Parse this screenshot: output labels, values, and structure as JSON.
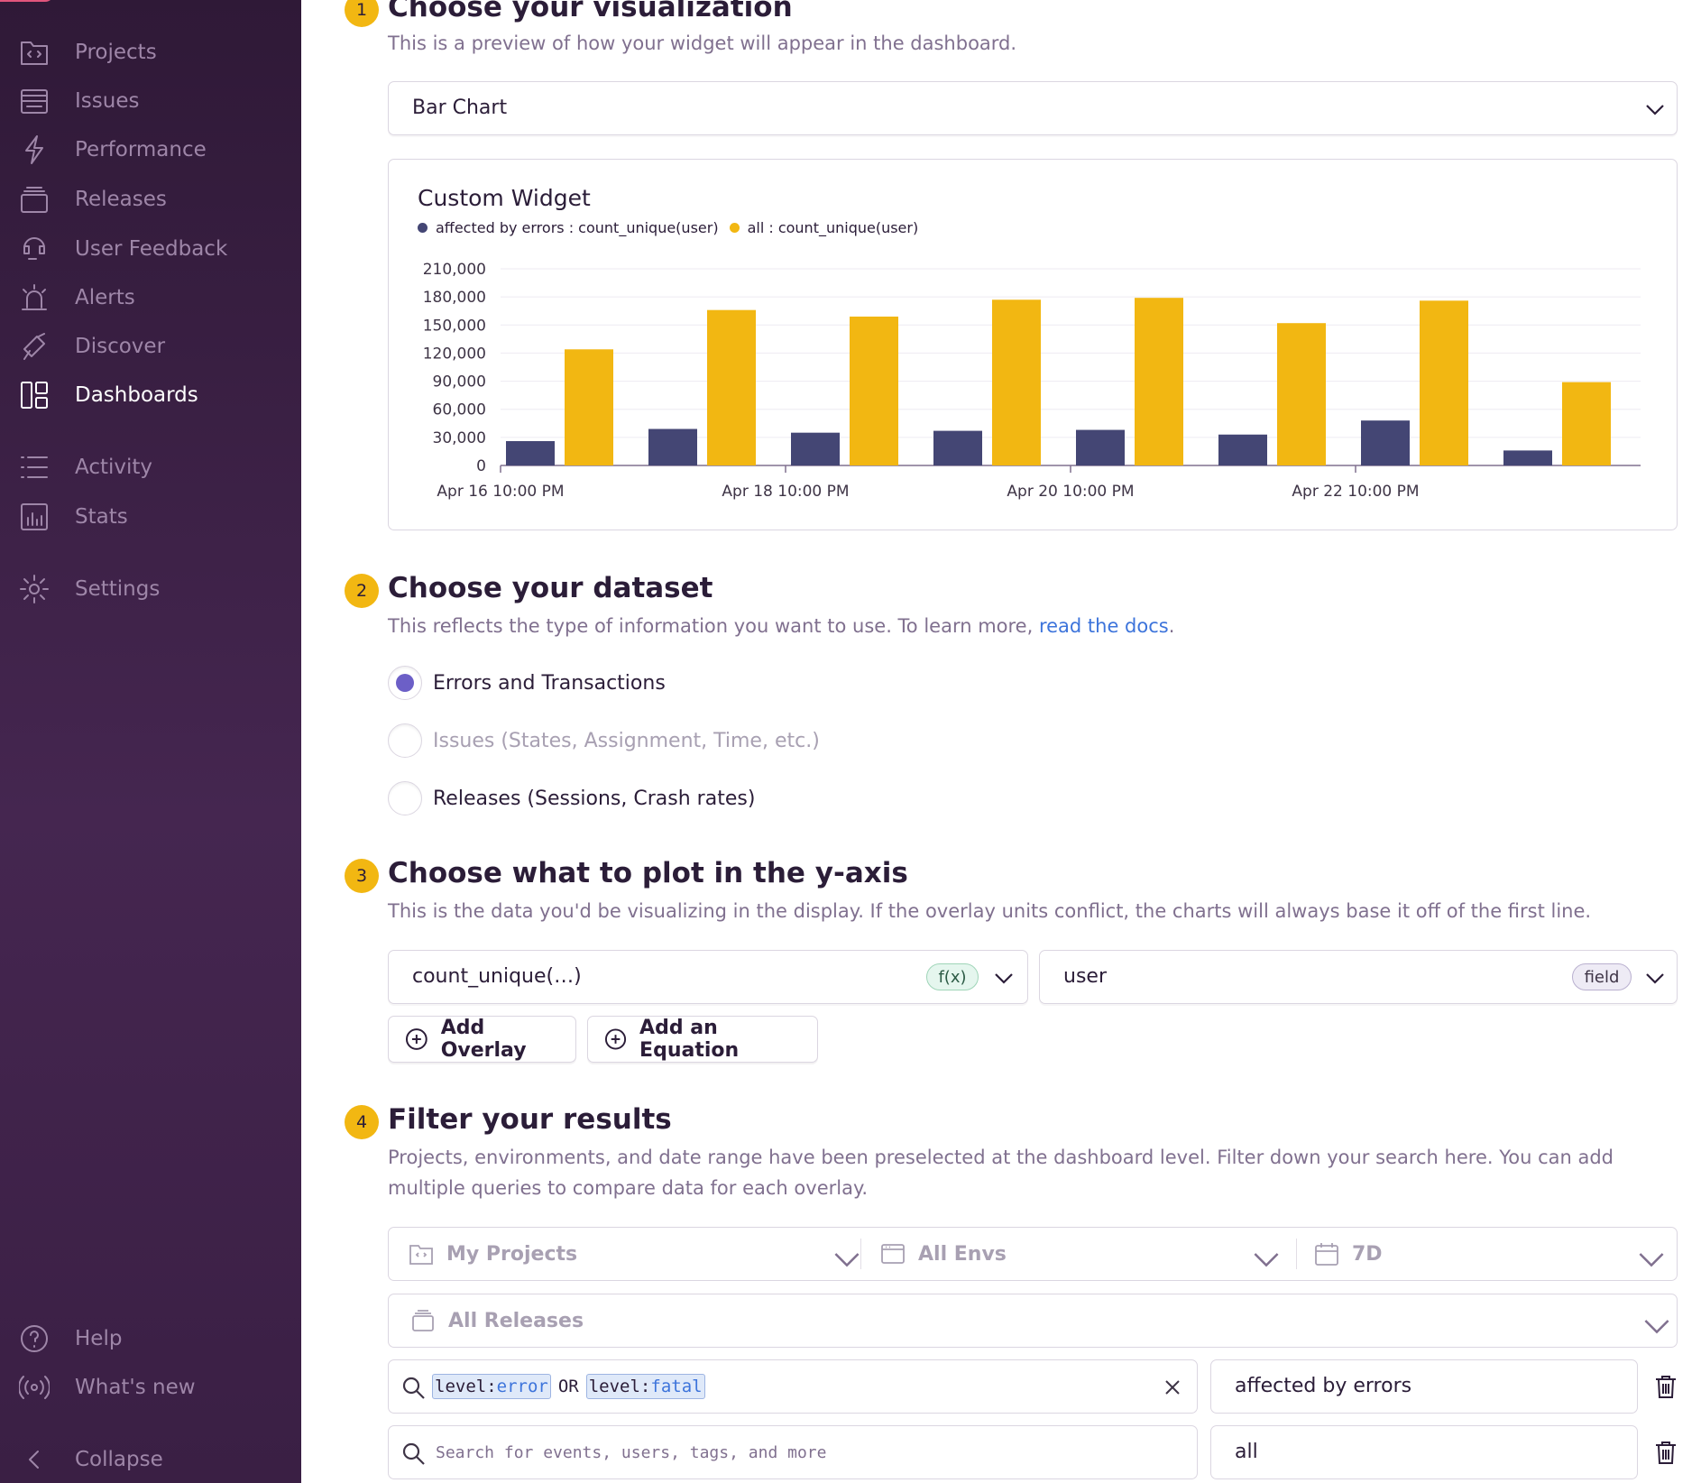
{
  "sidebar": {
    "items": [
      {
        "label": "Projects",
        "icon": "projects-icon"
      },
      {
        "label": "Issues",
        "icon": "issues-icon"
      },
      {
        "label": "Performance",
        "icon": "performance-icon"
      },
      {
        "label": "Releases",
        "icon": "releases-icon"
      },
      {
        "label": "User Feedback",
        "icon": "user-feedback-icon"
      },
      {
        "label": "Alerts",
        "icon": "alerts-icon"
      },
      {
        "label": "Discover",
        "icon": "discover-icon"
      },
      {
        "label": "Dashboards",
        "icon": "dashboards-icon",
        "active": true
      },
      {
        "label": "Activity",
        "icon": "activity-icon"
      },
      {
        "label": "Stats",
        "icon": "stats-icon"
      },
      {
        "label": "Settings",
        "icon": "settings-icon"
      }
    ],
    "footer": [
      {
        "label": "Help",
        "icon": "help-icon"
      },
      {
        "label": "What's new",
        "icon": "broadcast-icon"
      },
      {
        "label": "Collapse",
        "icon": "collapse-icon"
      }
    ]
  },
  "steps": {
    "s1": {
      "num": "1",
      "title": "Choose your visualization",
      "desc": "This is a preview of how your widget will appear in the dashboard."
    },
    "s2": {
      "num": "2",
      "title": "Choose your dataset",
      "desc": "This reflects the type of information you want to use. To learn more, ",
      "link": "read the docs",
      "desc_end": "."
    },
    "s3": {
      "num": "3",
      "title": "Choose what to plot in the y-axis",
      "desc": "This is the data you'd be visualizing in the display. If the overlay units conflict, the charts will always base it off of the first line."
    },
    "s4": {
      "num": "4",
      "title": "Filter your results",
      "desc": "Projects, environments, and date range have been preselected at the dashboard level. Filter down your search here. You can add multiple queries to compare data for each overlay."
    }
  },
  "visualization": {
    "selected": "Bar Chart"
  },
  "widget": {
    "title": "Custom Widget"
  },
  "chart_data": {
    "type": "bar",
    "title": "Custom Widget",
    "series": [
      {
        "name": "affected by errors : count_unique(user)",
        "color": "#444674",
        "values": [
          26000,
          39000,
          35000,
          37000,
          38000,
          33000,
          48000,
          16000
        ]
      },
      {
        "name": "all : count_unique(user)",
        "color": "#f2b712",
        "values": [
          124000,
          166000,
          159000,
          177000,
          179000,
          152000,
          176000,
          89000
        ]
      }
    ],
    "yticks": [
      "0",
      "30,000",
      "60,000",
      "90,000",
      "120,000",
      "150,000",
      "180,000",
      "210,000"
    ],
    "ylim": [
      0,
      210000
    ],
    "xtick_labels": [
      "Apr 16 10:00 PM",
      "Apr 18 10:00 PM",
      "Apr 20 10:00 PM",
      "Apr 22 10:00 PM"
    ],
    "xlabel": "",
    "ylabel": "",
    "grid": true,
    "legend": "top-left"
  },
  "dataset": {
    "options": [
      {
        "label": "Errors and Transactions",
        "checked": true,
        "disabled": false
      },
      {
        "label": "Issues (States, Assignment, Time, etc.)",
        "checked": false,
        "disabled": true
      },
      {
        "label": "Releases (Sessions, Crash rates)",
        "checked": false,
        "disabled": false
      }
    ]
  },
  "yaxis": {
    "function": "count_unique(…)",
    "function_tag": "f(x)",
    "field": "user",
    "field_tag": "field",
    "add_overlay": "Add Overlay",
    "add_equation": "Add an Equation"
  },
  "filters": {
    "projects": "My Projects",
    "envs": "All Envs",
    "period": "7D",
    "releases": "All Releases",
    "queries": [
      {
        "tokens": [
          {
            "key": "level:",
            "value": "error"
          },
          {
            "key": "level:",
            "value": "fatal"
          }
        ],
        "operator": "OR",
        "alias": "affected by errors"
      },
      {
        "placeholder": "Search for events, users, tags, and more",
        "alias": "all"
      }
    ]
  }
}
